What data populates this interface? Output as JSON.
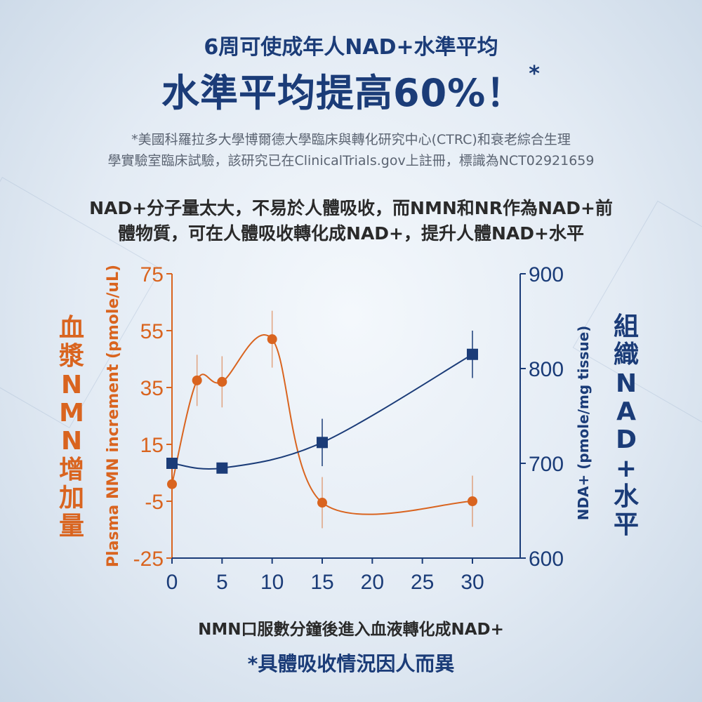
{
  "header": {
    "subtitle": "6周可使成年人NAD+水準平均",
    "headline": "水準平均提高60%！",
    "headline_mark": "*",
    "footnote_line1": "*美國科羅拉多大學博爾德大學臨床與轉化研究中心(CTRC)和衰老綜合生理",
    "footnote_line2": "學實驗室臨床試驗，該研究已在ClinicalTrials.gov上註冊，標識為NCT02921659"
  },
  "intro": {
    "line1": "NAD+分子量太大，不易於人體吸收，而NMN和NR作為NAD+前",
    "line2": "體物質，可在人體吸收轉化成NAD+，提升人體NAD+水平"
  },
  "left_vertical_label": [
    "血",
    "漿",
    "N",
    "M",
    "N",
    "增",
    "加",
    "量"
  ],
  "right_vertical_label": [
    "組",
    "織",
    "N",
    "A",
    "D",
    "+",
    "水",
    "平"
  ],
  "captions": {
    "x_caption": "NMN口服數分鐘後進入血液轉化成NAD+",
    "note": "*具體吸收情況因人而異"
  },
  "colors": {
    "plasma": "#d9641f",
    "tissue": "#1b3c78"
  },
  "chart_data": {
    "type": "line",
    "xlabel": "",
    "ylabel": "Plasma NMN increment (pmole/uL)",
    "y2label": "NDA+ (pmole/mg tissue)",
    "xlim": [
      0,
      30
    ],
    "ylim": [
      -25,
      75
    ],
    "y2lim": [
      600,
      900
    ],
    "x_ticks": [
      "0",
      "5",
      "10",
      "15",
      "20",
      "25",
      "30"
    ],
    "y_ticks": [
      "75",
      "55",
      "35",
      "15",
      "-5",
      "-25"
    ],
    "y2_ticks": [
      "900",
      "800",
      "700",
      "600"
    ],
    "series": [
      {
        "axis": "left",
        "marker": "circle",
        "points": [
          {
            "x": 0,
            "y": 1,
            "err": 0
          },
          {
            "x": 2.5,
            "y": 37.5,
            "err": 9
          },
          {
            "x": 5,
            "y": 37,
            "err": 9
          },
          {
            "x": 10,
            "y": 52,
            "err": 10
          },
          {
            "x": 15,
            "y": -5.5,
            "err": 9
          },
          {
            "x": 30,
            "y": -5,
            "err": 9
          }
        ]
      },
      {
        "axis": "right",
        "marker": "square",
        "points": [
          {
            "x": 0,
            "y": 700,
            "err": 0
          },
          {
            "x": 5,
            "y": 695,
            "err": 0
          },
          {
            "x": 15,
            "y": 722,
            "err": 25
          },
          {
            "x": 30,
            "y": 815,
            "err": 25
          }
        ]
      }
    ]
  }
}
